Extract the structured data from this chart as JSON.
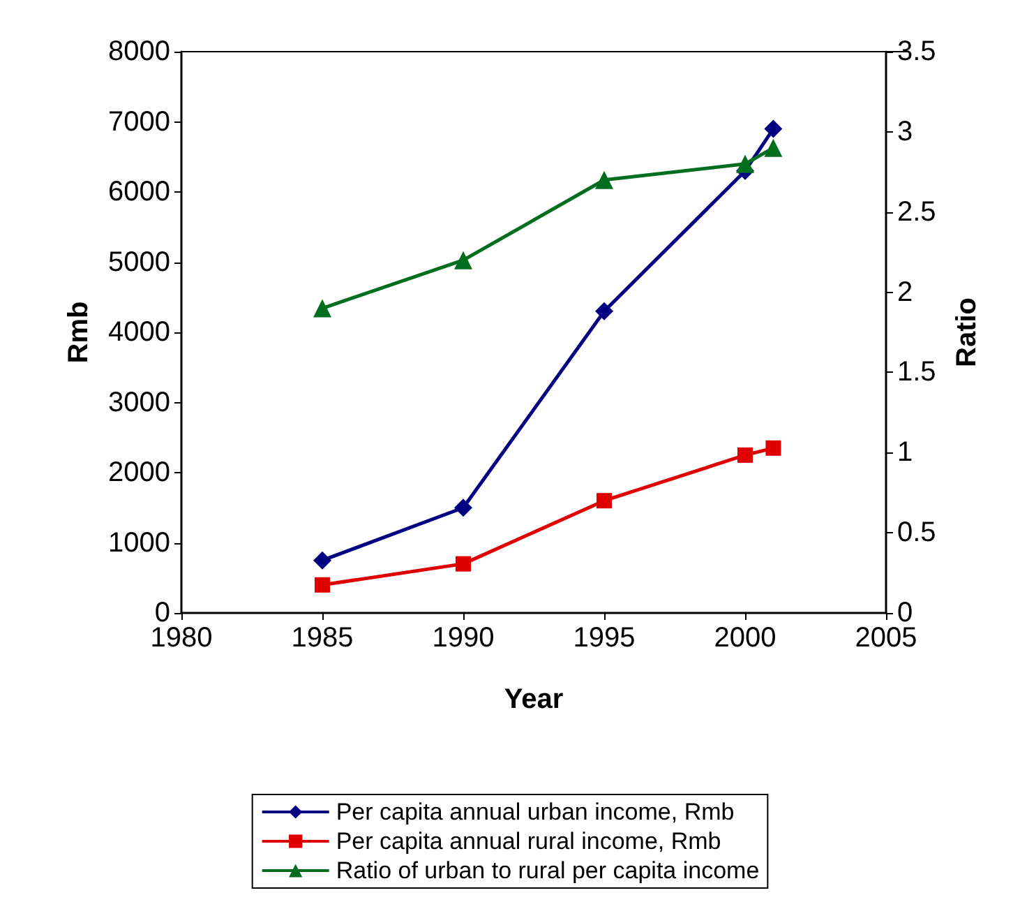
{
  "chart_data": {
    "type": "line",
    "xlabel": "Year",
    "ylabel": "Rmb",
    "y2label": "Ratio",
    "xlim": [
      1980,
      2005
    ],
    "xticks": [
      1980,
      1985,
      1990,
      1995,
      2000,
      2005
    ],
    "ylim": [
      0,
      8000
    ],
    "yticks": [
      0,
      1000,
      2000,
      3000,
      4000,
      5000,
      6000,
      7000,
      8000
    ],
    "y2lim": [
      0,
      3.5
    ],
    "y2ticks": [
      0,
      0.5,
      1,
      1.5,
      2,
      2.5,
      3,
      3.5
    ],
    "x": [
      1985,
      1990,
      1995,
      2000,
      2001
    ],
    "series": [
      {
        "name": "Per capita annual urban income, Rmb",
        "color": "#000080",
        "marker": "diamond",
        "values": [
          750,
          1500,
          4300,
          6300,
          6900
        ]
      },
      {
        "name": "Per capita annual rural income, Rmb",
        "color": "#e00000",
        "marker": "square",
        "values": [
          400,
          700,
          1600,
          2250,
          2350
        ]
      },
      {
        "name": "Ratio of urban to rural per capita income",
        "color": "#006e1e",
        "marker": "triangle",
        "axis": "y2",
        "values": [
          1.9,
          2.2,
          2.7,
          2.8,
          2.9
        ]
      }
    ],
    "legend": "bottom",
    "grid": false,
    "line_style": "solid"
  }
}
